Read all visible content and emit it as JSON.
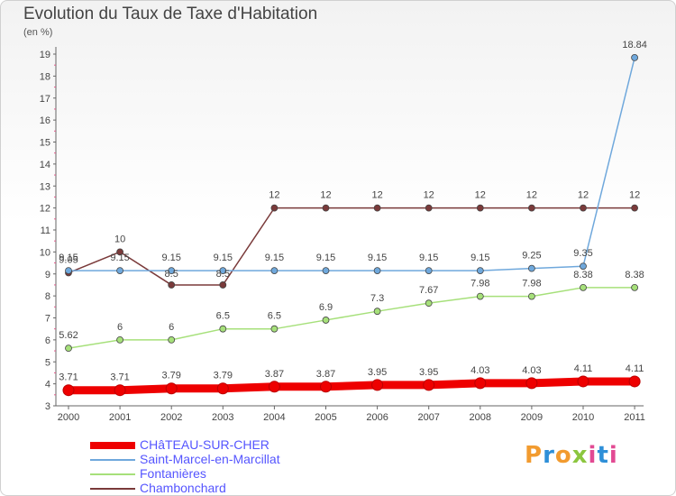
{
  "title": "Evolution du Taux de Taxe d'Habitation",
  "unit_label": "(en %)",
  "logo_text": "Proxiti",
  "chart_data": {
    "type": "line",
    "x": [
      "2000",
      "2001",
      "2002",
      "2003",
      "2004",
      "2005",
      "2006",
      "2007",
      "2008",
      "2009",
      "2010",
      "2011"
    ],
    "ylim": [
      3,
      19
    ],
    "yticks": [
      "3",
      "4",
      "5",
      "6",
      "7",
      "8",
      "9",
      "10",
      "11",
      "12",
      "13",
      "14",
      "15",
      "16",
      "17",
      "18",
      "19"
    ],
    "grid": false,
    "legend_position": "bottom-left",
    "series": [
      {
        "name": "CHâTEAU-SUR-CHER",
        "color": "#ee0000",
        "values": [
          3.71,
          3.71,
          3.79,
          3.79,
          3.87,
          3.87,
          3.95,
          3.95,
          4.03,
          4.03,
          4.11,
          4.11
        ],
        "labels": [
          "3.71",
          "3.71",
          "3.79",
          "3.79",
          "3.87",
          "3.87",
          "3.95",
          "3.95",
          "4.03",
          "4.03",
          "4.11",
          "4.11"
        ]
      },
      {
        "name": "Saint-Marcel-en-Marcillat",
        "color": "#6fa8dc",
        "values": [
          9.15,
          9.15,
          9.15,
          9.15,
          9.15,
          9.15,
          9.15,
          9.15,
          9.15,
          9.25,
          9.35,
          18.84
        ],
        "labels": [
          "9.15",
          "9.15",
          "9.15",
          "9.15",
          "9.15",
          "9.15",
          "9.15",
          "9.15",
          "9.15",
          "9.25",
          "9.35",
          "18.84"
        ]
      },
      {
        "name": "Fontanières",
        "color": "#a6e07a",
        "values": [
          5.62,
          6,
          6,
          6.5,
          6.5,
          6.9,
          7.3,
          7.67,
          7.98,
          7.98,
          8.38,
          8.38
        ],
        "labels": [
          "5.62",
          "6",
          "6",
          "6.5",
          "6.5",
          "6.9",
          "7.3",
          "7.67",
          "7.98",
          "7.98",
          "8.38",
          "8.38"
        ]
      },
      {
        "name": "Chambonchard",
        "color": "#7a3a3a",
        "values": [
          9.05,
          10,
          8.5,
          8.5,
          12,
          12,
          12,
          12,
          12,
          12,
          12,
          12
        ],
        "labels": [
          "9.05",
          "10",
          "8.5",
          "8.5",
          "12",
          "12",
          "12",
          "12",
          "12",
          "12",
          "12",
          "12"
        ]
      }
    ]
  }
}
